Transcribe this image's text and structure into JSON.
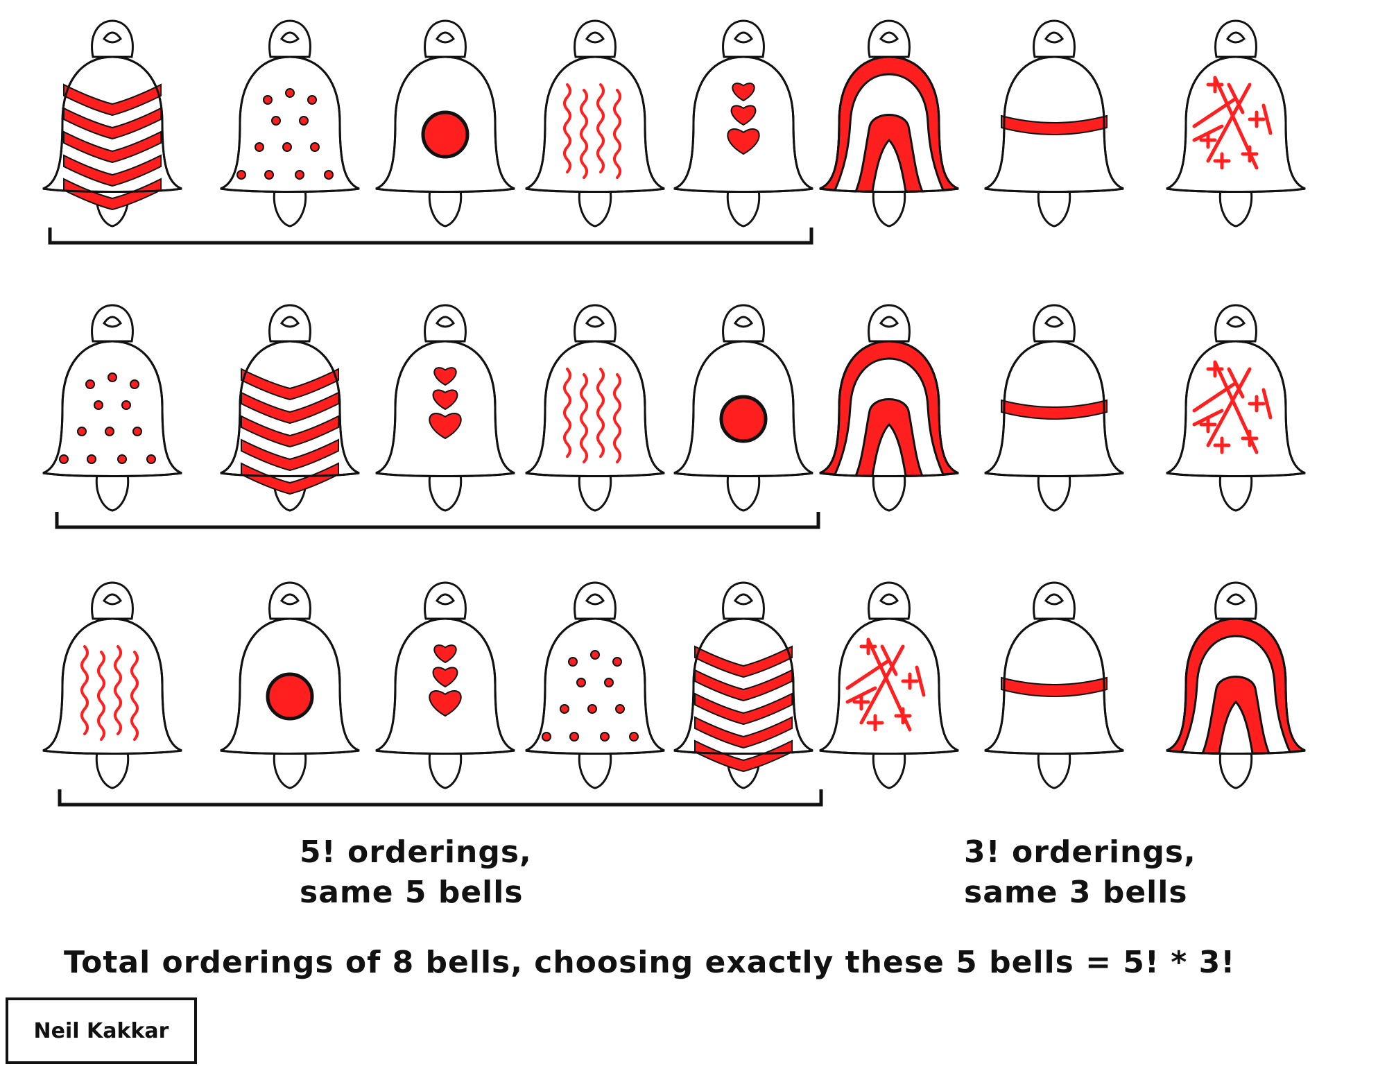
{
  "rows": [
    {
      "bells": [
        "chevron",
        "dots",
        "circle",
        "squiggle",
        "hearts",
        "arch",
        "band",
        "cross"
      ]
    },
    {
      "bells": [
        "dots",
        "chevron",
        "hearts",
        "squiggle",
        "circle",
        "arch",
        "band",
        "cross"
      ]
    },
    {
      "bells": [
        "squiggle",
        "circle",
        "hearts",
        "dots",
        "chevron",
        "cross",
        "band",
        "arch"
      ]
    }
  ],
  "captions": {
    "left_line1": "5! orderings,",
    "left_line2": "same 5 bells",
    "right_line1": "3! orderings,",
    "right_line2": "same 3 bells",
    "total": "Total orderings of 8 bells, choosing exactly these 5 bells = 5! * 3!"
  },
  "signature": "Neil Kakkar",
  "colors": {
    "accent": "#ff1f1f",
    "ink": "#111111"
  }
}
